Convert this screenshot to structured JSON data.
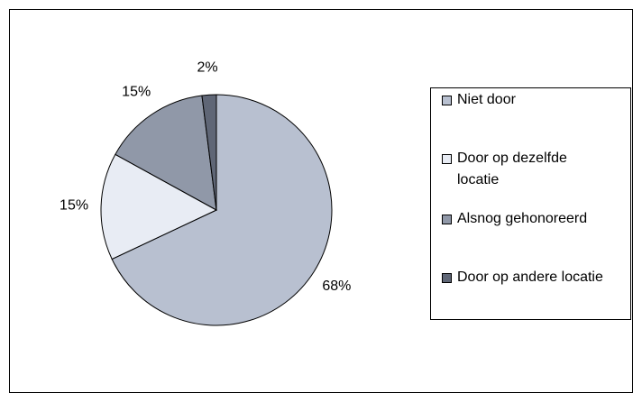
{
  "chart_data": {
    "type": "pie",
    "categories": [
      "Niet door",
      "Door op dezelfde locatie",
      "Alsnog gehonoreerd",
      "Door op andere locatie"
    ],
    "values": [
      68,
      15,
      15,
      2
    ],
    "value_labels": [
      "68%",
      "15%",
      "15%",
      "2%"
    ],
    "colors": [
      "#b8c0d0",
      "#e8ecf4",
      "#9098a8",
      "#5f6676"
    ]
  }
}
